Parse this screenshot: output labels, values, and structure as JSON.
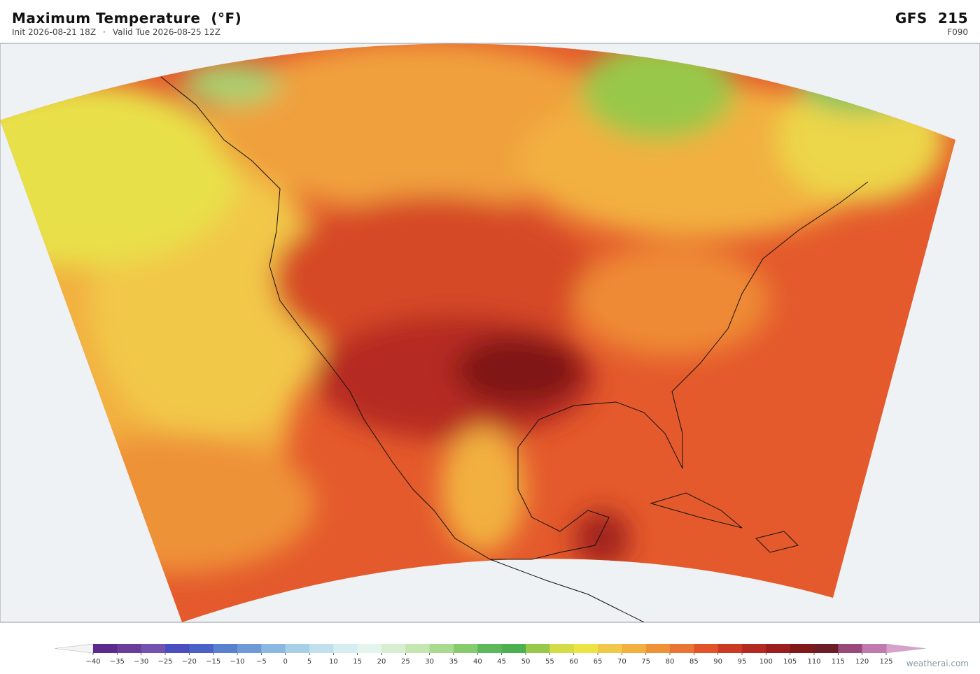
{
  "header": {
    "title": "Maximum Temperature  (°F)",
    "init": "Init 2026-08-21 18Z",
    "separator": "·",
    "valid": "Valid Tue 2026-08-25 12Z",
    "model": "GFS  215",
    "forecast_hour": "F090"
  },
  "colorbar": {
    "ticks": [
      {
        "value": -40,
        "label": "−40"
      },
      {
        "value": -35,
        "label": "−35"
      },
      {
        "value": -30,
        "label": "−30"
      },
      {
        "value": -25,
        "label": "−25"
      },
      {
        "value": -20,
        "label": "−20"
      },
      {
        "value": -15,
        "label": "−15"
      },
      {
        "value": -10,
        "label": "−10"
      },
      {
        "value": -5,
        "label": "−5"
      },
      0,
      5,
      10,
      15,
      20,
      25,
      30,
      35,
      40,
      45,
      50,
      55,
      60,
      65,
      70,
      75,
      80,
      85,
      90,
      95,
      100,
      105,
      110,
      115,
      120,
      125
    ],
    "colors": [
      "#5b2a8c",
      "#6a3d9a",
      "#7452b0",
      "#4a4ec0",
      "#4a62c8",
      "#5a80d0",
      "#6e9ad8",
      "#8ab8e0",
      "#a8cfe8",
      "#c0e0ee",
      "#d6eef2",
      "#e6f4ee",
      "#d8eed0",
      "#c4e6b0",
      "#a8da90",
      "#86cc6e",
      "#5cb85a",
      "#4caf50",
      "#98c84a",
      "#d4dc48",
      "#ece444",
      "#f2c84a",
      "#f2b040",
      "#ee9238",
      "#ea7434",
      "#e05428",
      "#cc3a24",
      "#b52a20",
      "#9a1e1e",
      "#801818",
      "#6e1c26",
      "#9a4a7a",
      "#c07ab0"
    ],
    "under_color": "#f4f4f4",
    "over_color": "#d8a0cc"
  },
  "watermark": "weatherai.com"
}
